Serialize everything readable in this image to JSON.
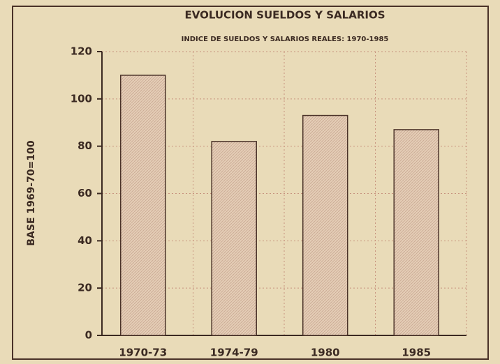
{
  "chart_data": {
    "type": "bar",
    "title": "EVOLUCION SUELDOS Y SALARIOS",
    "subtitle": "INDICE DE SUELDOS Y SALARIOS REALES: 1970-1985",
    "y_label": "BASE 1969-70=100",
    "categories": [
      "1970-73",
      "1974-79",
      "1980",
      "1985"
    ],
    "values": [
      110,
      82,
      93,
      87
    ],
    "color": "#e4cdb6",
    "ylim": [
      0,
      120
    ],
    "yticks": [
      0,
      20,
      40,
      60,
      80,
      100,
      120
    ],
    "grid": true
  }
}
